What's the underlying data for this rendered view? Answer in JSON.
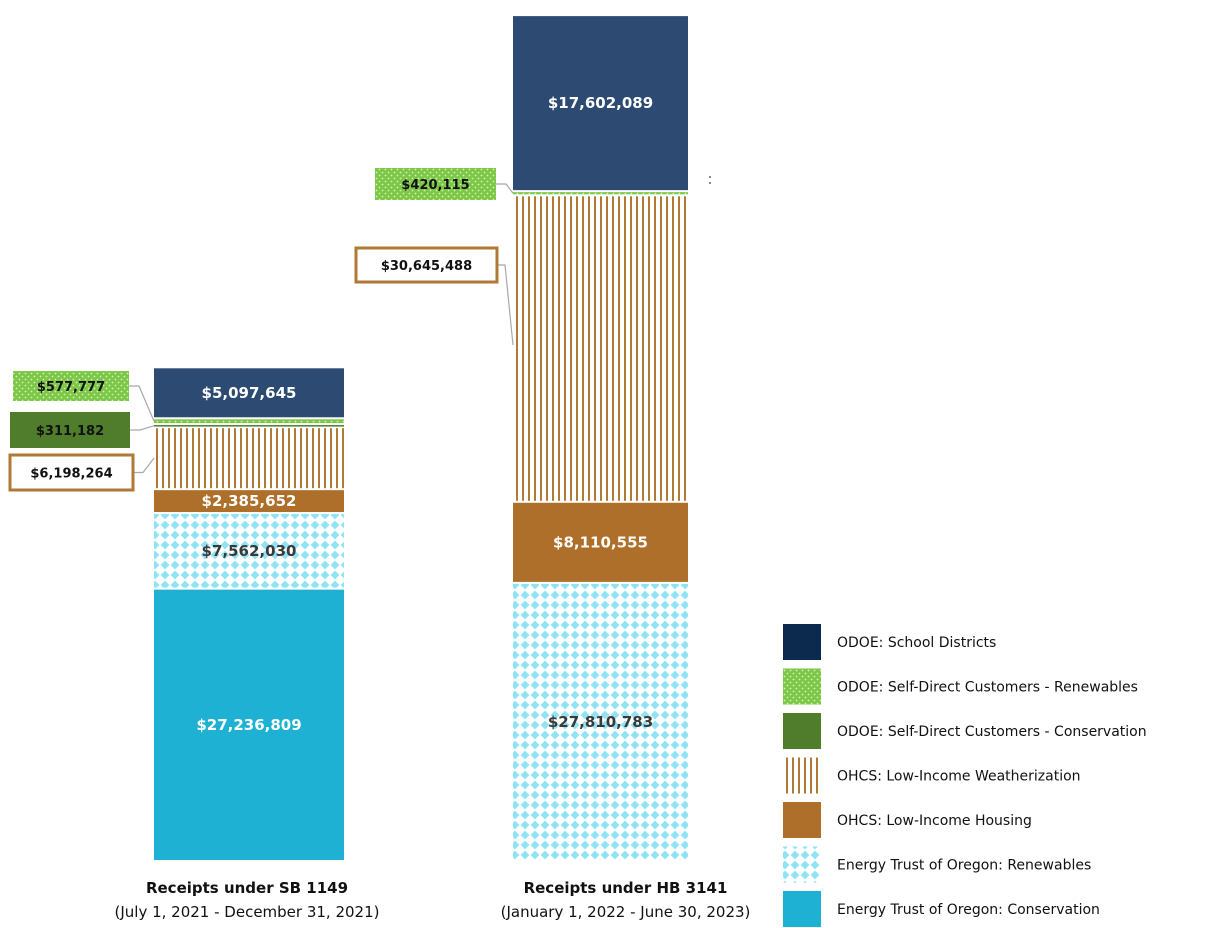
{
  "chart_data": {
    "type": "bar",
    "stacked": true,
    "categories": [
      {
        "name": "Receipts under SB 1149",
        "period": "(July 1, 2021 - December 31, 2021)"
      },
      {
        "name": "Receipts under HB 3141",
        "period": "(January 1, 2022 - June 30, 2023)"
      }
    ],
    "series": [
      {
        "name": "Energy Trust of Oregon: Conservation",
        "values": [
          27236809,
          0
        ],
        "labels": [
          "$27,236,809",
          ""
        ],
        "color": "#1fb1d3",
        "pattern": "solid",
        "label_style": "inside",
        "label_color": "#ffffff"
      },
      {
        "name": "Energy Trust of Oregon: Renewables",
        "values": [
          7562030,
          27810783
        ],
        "labels": [
          "$7,562,030",
          "$27,810,783"
        ],
        "color": "#8fe3f4",
        "pattern": "diamonds",
        "label_style": "inside",
        "label_color": "#3a3a3a"
      },
      {
        "name": "OHCS: Low-Income Housing",
        "values": [
          2385652,
          8110555
        ],
        "labels": [
          "$2,385,652",
          "$8,110,555"
        ],
        "color": "#ad6f2a",
        "pattern": "solid",
        "label_style": "inside",
        "label_color": "#ffffff"
      },
      {
        "name": "OHCS: Low-Income Weatherization",
        "values": [
          6198264,
          30645488
        ],
        "labels": [
          "$6,198,264",
          "$30,645,488"
        ],
        "color": "#b07a36",
        "pattern": "vlines",
        "label_style": "callout",
        "label_color": "#111111"
      },
      {
        "name": "ODOE: Self-Direct Customers - Conservation",
        "values": [
          311182,
          0
        ],
        "labels": [
          "$311,182",
          ""
        ],
        "color": "#4f7d2b",
        "pattern": "solid",
        "label_style": "callout",
        "label_color": "#ffffff"
      },
      {
        "name": "ODOE: Self-Direct Customers - Renewables",
        "values": [
          577777,
          420115
        ],
        "labels": [
          "$577,777",
          "$420,115"
        ],
        "color": "#7cc846",
        "pattern": "dots",
        "label_style": "callout",
        "label_color": "#111111"
      },
      {
        "name": "ODOE: School Districts",
        "values": [
          5097645,
          17602089
        ],
        "labels": [
          "$5,097,645",
          "$17,602,089"
        ],
        "color": "#2c4a72",
        "pattern": "solid",
        "label_style": "inside",
        "label_color": "#ffffff"
      }
    ],
    "legend": {
      "position": "bottom-right",
      "order": [
        "ODOE: School Districts",
        "ODOE: Self-Direct Customers - Renewables",
        "ODOE: Self-Direct Customers - Conservation",
        "OHCS: Low-Income Weatherization",
        "OHCS: Low-Income Housing",
        "Energy Trust of Oregon: Renewables",
        "Energy Trust of Oregon: Conservation"
      ],
      "swatch_colors": {
        "ODOE: School Districts": "#0b2a4e"
      }
    },
    "grid": false,
    "axes_visible": false
  }
}
